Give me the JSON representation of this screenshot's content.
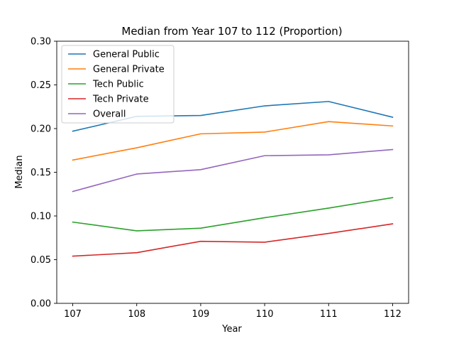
{
  "chart_data": {
    "type": "line",
    "title": "Median from Year 107 to 112 (Proportion)",
    "xlabel": "Year",
    "ylabel": "Median",
    "x": [
      107,
      108,
      109,
      110,
      111,
      112
    ],
    "x_tick_labels": [
      "107",
      "108",
      "109",
      "110",
      "111",
      "112"
    ],
    "ylim": [
      0,
      0.3
    ],
    "y_ticks": [
      0.0,
      0.05,
      0.1,
      0.15,
      0.2,
      0.25,
      0.3
    ],
    "y_tick_labels": [
      "0.00",
      "0.05",
      "0.10",
      "0.15",
      "0.20",
      "0.25",
      "0.30"
    ],
    "grid": false,
    "legend_position": "top-left",
    "series": [
      {
        "name": "General Public",
        "color": "#1f77b4",
        "values": [
          0.197,
          0.214,
          0.215,
          0.226,
          0.231,
          0.213
        ]
      },
      {
        "name": "General Private",
        "color": "#ff7f0e",
        "values": [
          0.164,
          0.178,
          0.194,
          0.196,
          0.208,
          0.203
        ]
      },
      {
        "name": "Tech Public",
        "color": "#2ca02c",
        "values": [
          0.093,
          0.083,
          0.086,
          0.098,
          0.109,
          0.121
        ]
      },
      {
        "name": "Tech Private",
        "color": "#d62728",
        "values": [
          0.054,
          0.058,
          0.071,
          0.07,
          0.08,
          0.091
        ]
      },
      {
        "name": "Overall",
        "color": "#9467bd",
        "values": [
          0.128,
          0.148,
          0.153,
          0.169,
          0.17,
          0.176
        ]
      }
    ]
  }
}
